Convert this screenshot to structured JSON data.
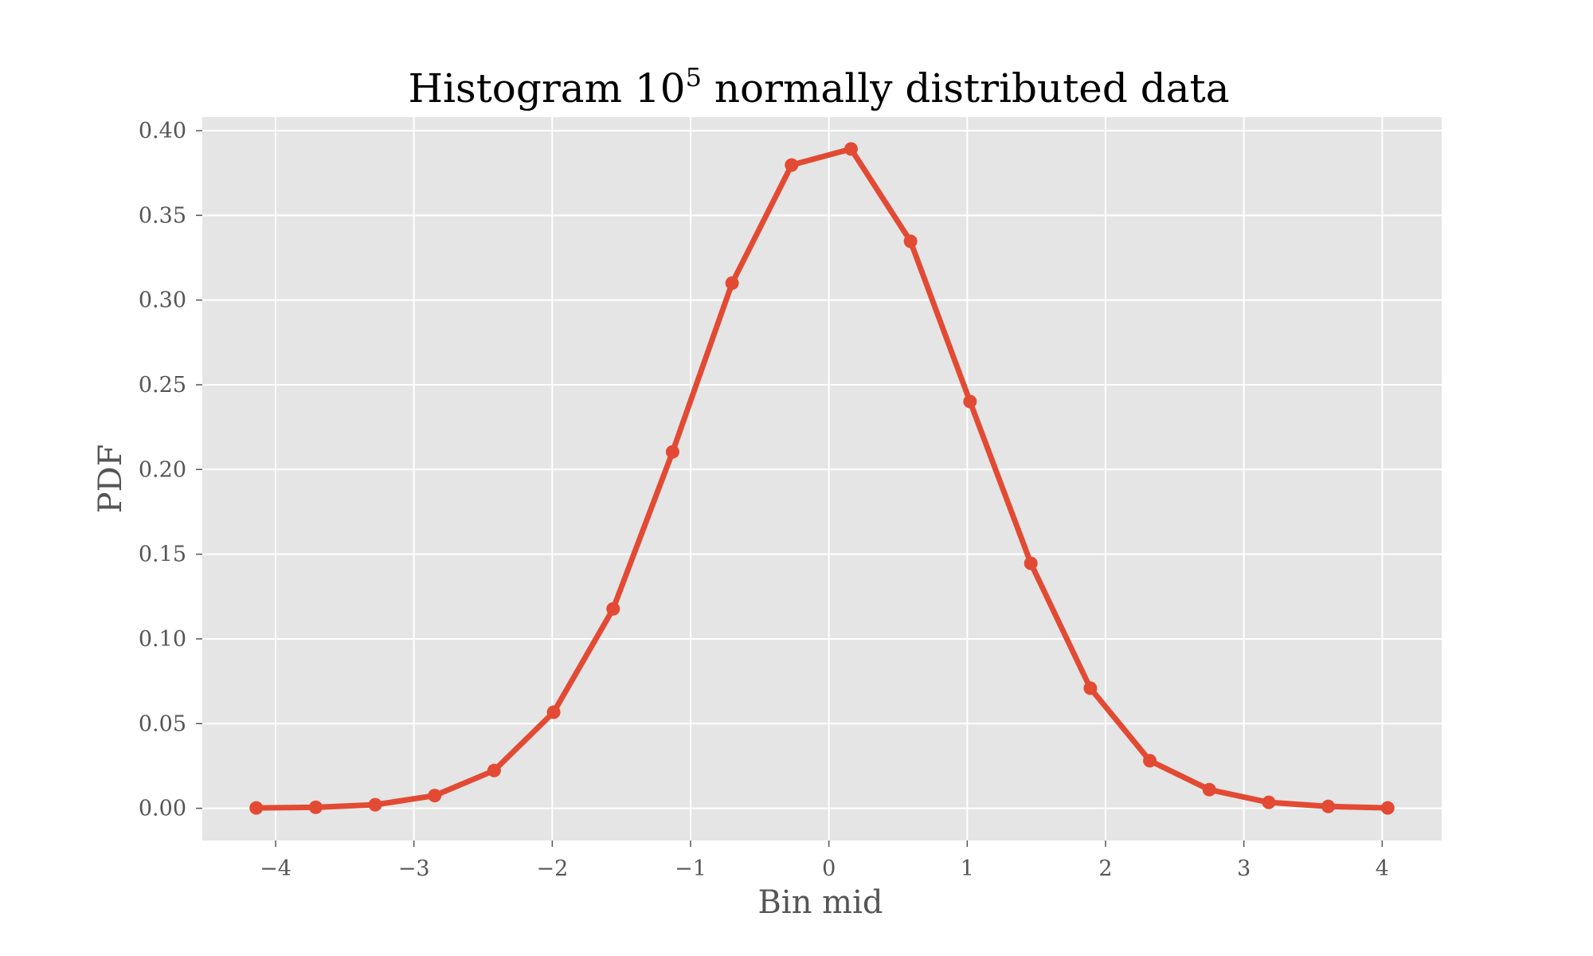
{
  "chart_data": {
    "type": "line",
    "title_main": "Histogram 10",
    "title_sup": "5",
    "title_rest": " normally distributed data",
    "xlabel": "Bin mid",
    "ylabel": "PDF",
    "xlim": [
      -4.53,
      4.43
    ],
    "ylim": [
      -0.019,
      0.408
    ],
    "x_ticks": [
      -4,
      -3,
      -2,
      -1,
      0,
      1,
      2,
      3,
      4
    ],
    "x_tick_labels": [
      "−4",
      "−3",
      "−2",
      "−1",
      "0",
      "1",
      "2",
      "3",
      "4"
    ],
    "y_ticks": [
      0.0,
      0.05,
      0.1,
      0.15,
      0.2,
      0.25,
      0.3,
      0.35,
      0.4
    ],
    "y_tick_labels": [
      "0.00",
      "0.05",
      "0.10",
      "0.15",
      "0.20",
      "0.25",
      "0.30",
      "0.35",
      "0.40"
    ],
    "grid": true,
    "colors": {
      "line": "#e24a33",
      "plot_bg": "#e5e5e5",
      "grid": "#ffffff",
      "tick": "#555555"
    },
    "series": [
      {
        "x": [
          -4.14,
          -3.71,
          -3.28,
          -2.85,
          -2.42,
          -1.99,
          -1.56,
          -1.13,
          -0.7,
          -0.27,
          0.16,
          0.59,
          1.02,
          1.46,
          1.89,
          2.32,
          2.75,
          3.18,
          3.61,
          4.04
        ],
        "y": [
          0.0002,
          0.0006,
          0.0021,
          0.0075,
          0.0223,
          0.0567,
          0.1177,
          0.2104,
          0.31,
          0.3797,
          0.3892,
          0.3347,
          0.2401,
          0.1446,
          0.0709,
          0.0281,
          0.011,
          0.0035,
          0.0011,
          0.0002
        ]
      }
    ]
  }
}
